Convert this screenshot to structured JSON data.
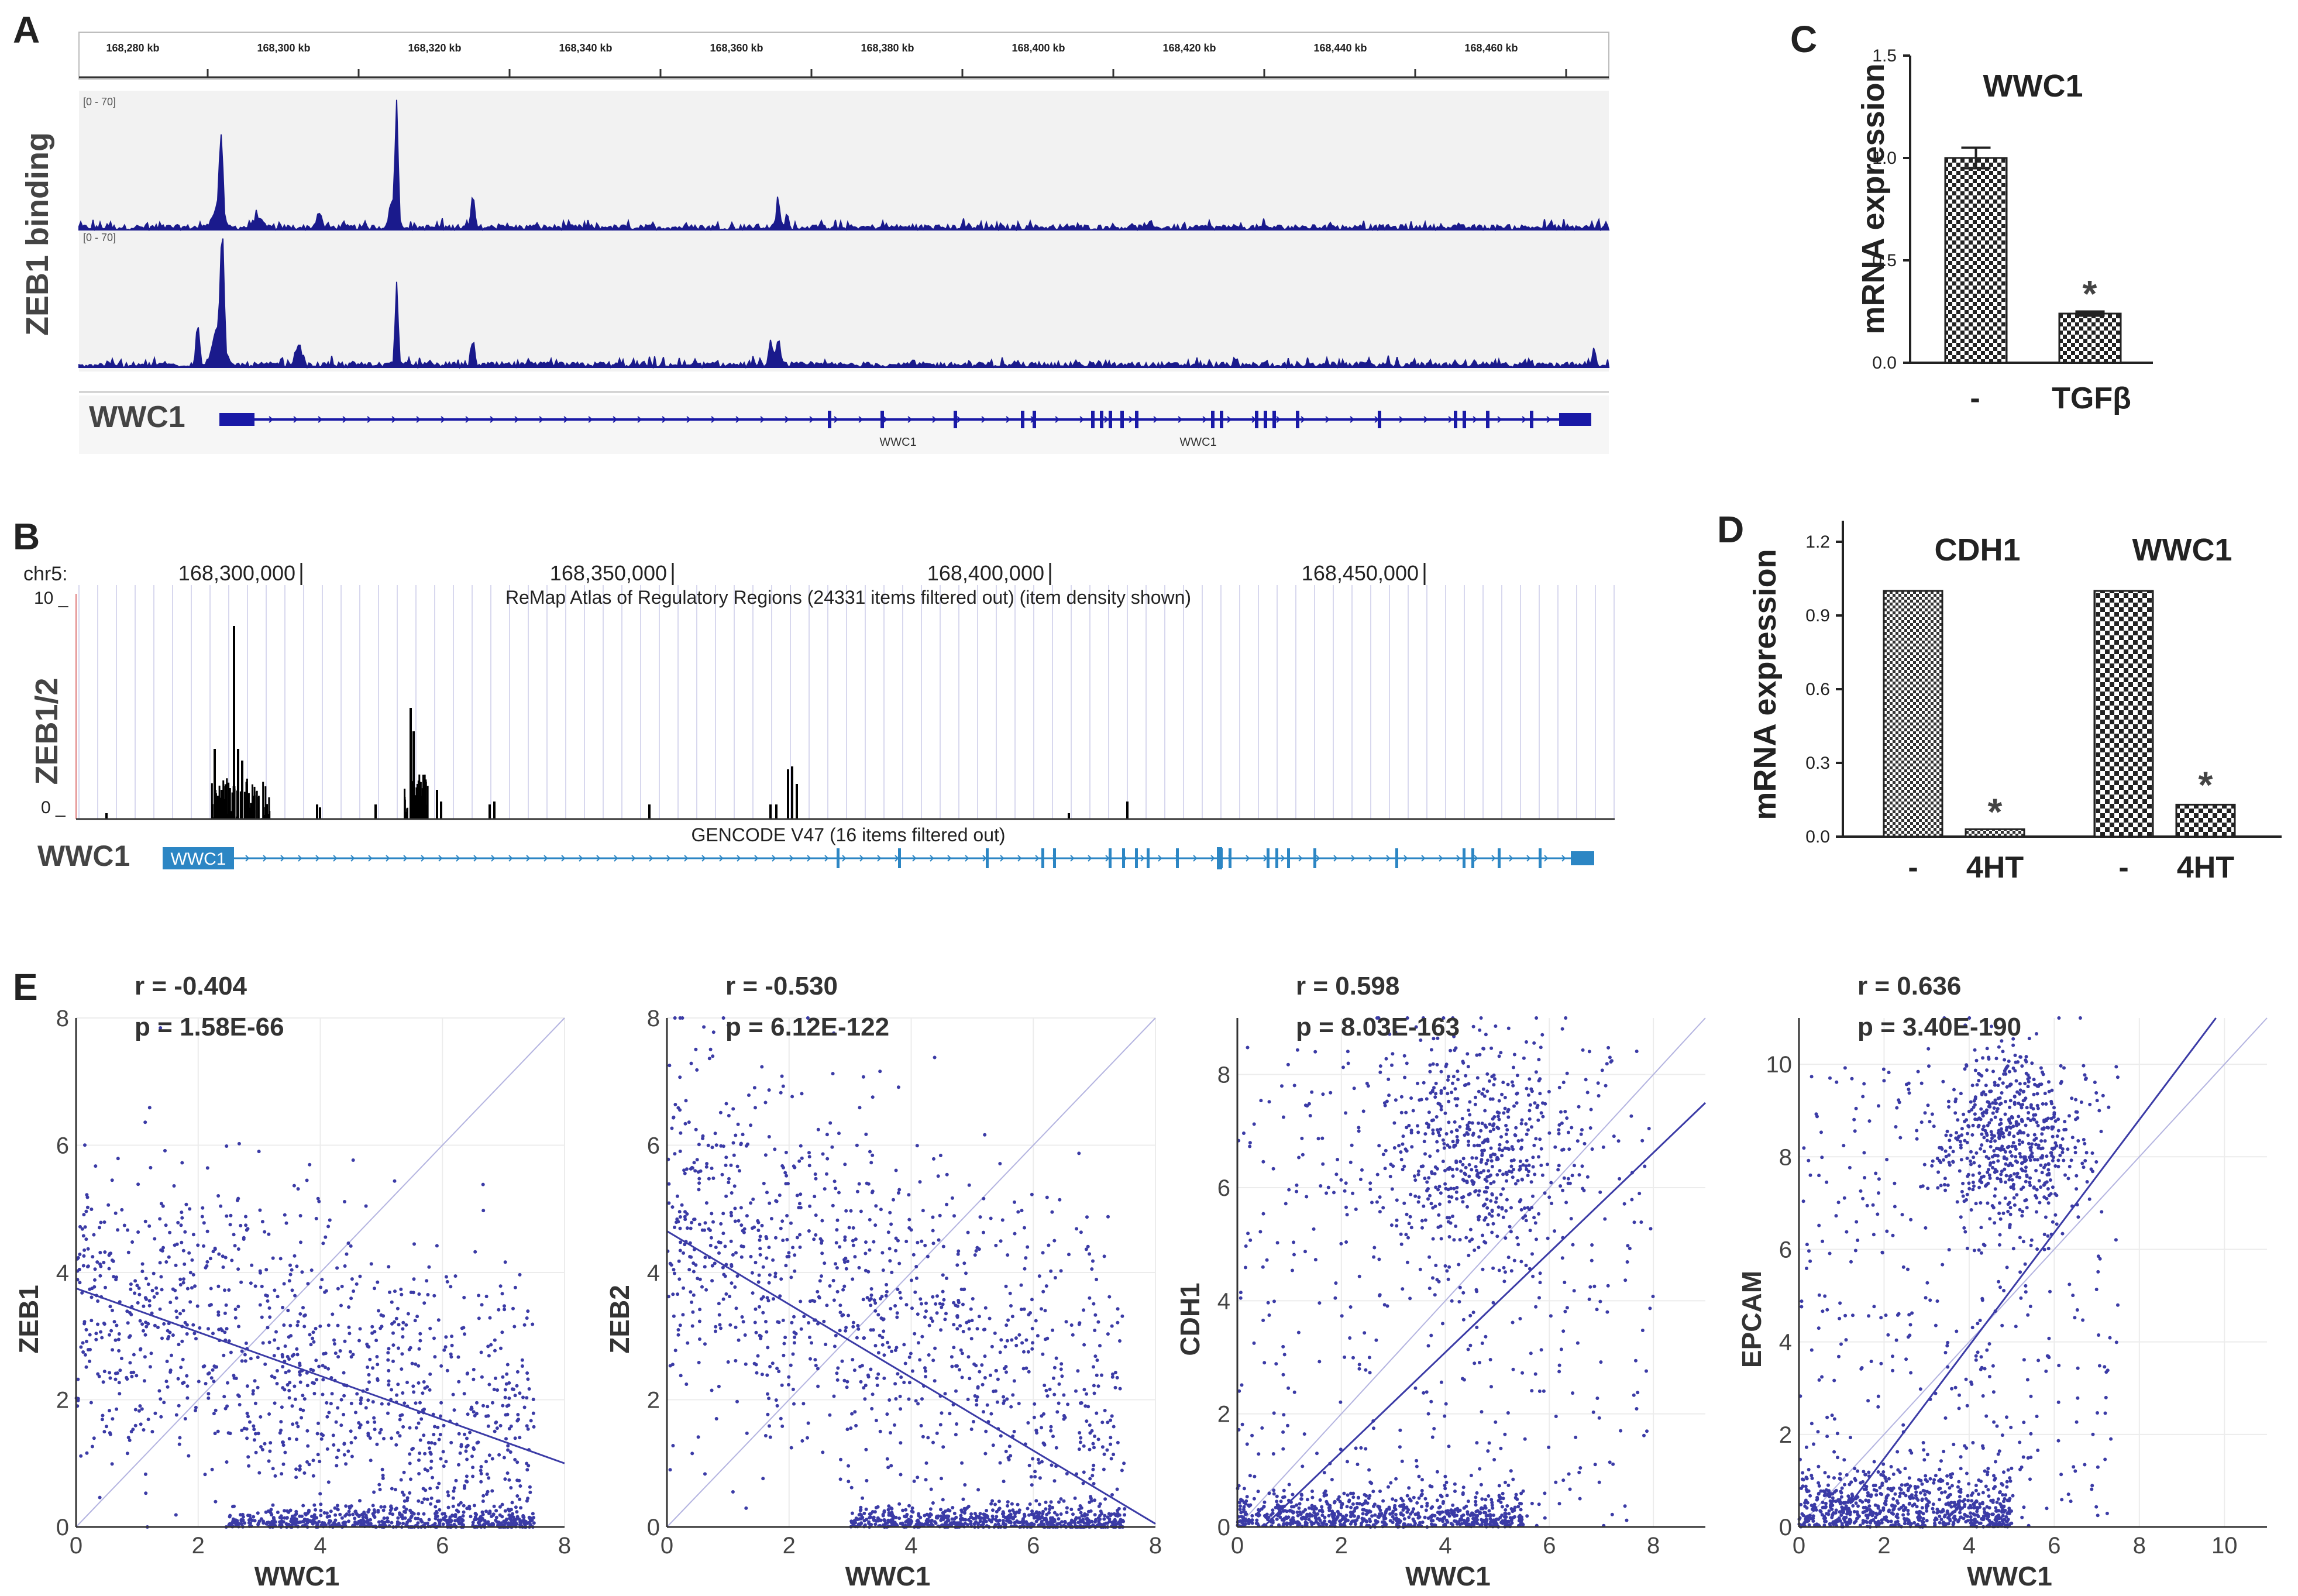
{
  "panels": {
    "a": {
      "letter": "A",
      "ylabel": "ZEB1 binding",
      "ruler_ticks": [
        "168,280 kb",
        "168,300 kb",
        "168,320 kb",
        "168,340 kb",
        "168,360 kb",
        "168,380 kb",
        "168,400 kb",
        "168,420 kb",
        "168,440 kb",
        "168,460 kb"
      ],
      "track_range": "[0 - 70]",
      "gene_label": "WWC1",
      "gene_sublabels": [
        "WWC1",
        "WWC1"
      ],
      "colors": {
        "signal": "#1a1a8c",
        "gene": "#1a1aa6",
        "track_bg": "#f2f2f2"
      }
    },
    "b": {
      "letter": "B",
      "chrom_label": "chr5:",
      "coords": [
        "168,300,000",
        "168,350,000",
        "168,400,000",
        "168,450,000"
      ],
      "y_top": "10 _",
      "y_zero": "0 _",
      "track_title": "ReMap Atlas of Regulatory Regions (24331 items filtered out) (item density shown)",
      "ylabel": "ZEB1/2",
      "gencode_title": "GENCODE V47 (16 items filtered out)",
      "gene_label": "WWC1",
      "gene_box_label": "WWC1",
      "colors": {
        "signal": "#000000",
        "gene": "#2c86c4",
        "grid": "#d8d8ee"
      }
    },
    "c": {
      "letter": "C",
      "title": "WWC1",
      "ylabel": "mRNA expression",
      "yticks": [
        "0.0",
        "0.5",
        "1.0",
        "1.5"
      ],
      "categories": [
        "-",
        "TGFβ"
      ],
      "star": "*"
    },
    "d": {
      "letter": "D",
      "ylabel": "mRNA expression",
      "yticks": [
        "0.0",
        "0.3",
        "0.6",
        "0.9",
        "1.2"
      ],
      "group_titles": [
        "CDH1",
        "WWC1"
      ],
      "categories": [
        "-",
        "4HT",
        "-",
        "4HT"
      ],
      "stars": [
        "*",
        "*"
      ]
    },
    "e": {
      "letter": "E",
      "plots": [
        {
          "r": "r = -0.404",
          "p": "p = 1.58E-66",
          "ylabel": "ZEB1",
          "xlabel": "WWC1",
          "xticks": [
            "0",
            "2",
            "4",
            "6",
            "8"
          ],
          "yticks": [
            "0",
            "2",
            "4",
            "6",
            "8"
          ]
        },
        {
          "r": "r = -0.530",
          "p": "p = 6.12E-122",
          "ylabel": "ZEB2",
          "xlabel": "WWC1",
          "xticks": [
            "0",
            "2",
            "4",
            "6",
            "8"
          ],
          "yticks": [
            "0",
            "2",
            "4",
            "6",
            "8"
          ]
        },
        {
          "r": "r = 0.598",
          "p": "p = 8.03E-163",
          "ylabel": "CDH1",
          "xlabel": "WWC1",
          "xticks": [
            "0",
            "2",
            "4",
            "6",
            "8"
          ],
          "yticks": [
            "0",
            "2",
            "4",
            "6",
            "8"
          ]
        },
        {
          "r": "r = 0.636",
          "p": "p = 3.40E-190",
          "ylabel": "EPCAM",
          "xlabel": "WWC1",
          "xticks": [
            "0",
            "2",
            "4",
            "6",
            "8",
            "10"
          ],
          "yticks": [
            "0",
            "2",
            "4",
            "6",
            "8",
            "10"
          ]
        }
      ],
      "colors": {
        "points": "#3b3ba6",
        "fit": "#3b3ba6",
        "identity": "#b4b4e0",
        "grid": "#ececec"
      }
    }
  },
  "chart_data": [
    {
      "type": "bar",
      "panel": "C",
      "title": "WWC1",
      "ylabel": "mRNA expression",
      "categories": [
        "-",
        "TGFβ"
      ],
      "values": [
        1.0,
        0.24
      ],
      "errors": [
        0.05,
        0.01
      ],
      "ylim": [
        0,
        1.5
      ],
      "annotations": [
        "*"
      ]
    },
    {
      "type": "bar",
      "panel": "D",
      "ylabel": "mRNA expression",
      "groups": [
        "CDH1",
        "WWC1"
      ],
      "categories": [
        "-",
        "4HT",
        "-",
        "4HT"
      ],
      "values": [
        1.0,
        0.03,
        1.0,
        0.13
      ],
      "ylim": [
        0,
        1.2
      ],
      "annotations": [
        "*",
        "*"
      ]
    },
    {
      "type": "scatter",
      "panel": "E1",
      "xlabel": "WWC1",
      "ylabel": "ZEB1",
      "xlim": [
        0,
        8
      ],
      "ylim": [
        0,
        8
      ],
      "r": -0.404,
      "p": "1.58E-66",
      "fit": {
        "x": [
          0,
          8
        ],
        "y": [
          3.75,
          1.0
        ]
      }
    },
    {
      "type": "scatter",
      "panel": "E2",
      "xlabel": "WWC1",
      "ylabel": "ZEB2",
      "xlim": [
        0,
        8
      ],
      "ylim": [
        0,
        8
      ],
      "r": -0.53,
      "p": "6.12E-122",
      "fit": {
        "x": [
          0,
          8
        ],
        "y": [
          4.65,
          0.05
        ]
      }
    },
    {
      "type": "scatter",
      "panel": "E3",
      "xlabel": "WWC1",
      "ylabel": "CDH1",
      "xlim": [
        0,
        9
      ],
      "ylim": [
        0,
        9
      ],
      "r": 0.598,
      "p": "8.03E-163",
      "fit": {
        "x": [
          0.5,
          9
        ],
        "y": [
          0.0,
          7.5
        ]
      }
    },
    {
      "type": "scatter",
      "panel": "E4",
      "xlabel": "WWC1",
      "ylabel": "EPCAM",
      "xlim": [
        0,
        11
      ],
      "ylim": [
        0,
        11
      ],
      "r": 0.636,
      "p": "3.40E-190",
      "fit": {
        "x": [
          1.2,
          9.8
        ],
        "y": [
          0.5,
          11
        ]
      }
    }
  ]
}
